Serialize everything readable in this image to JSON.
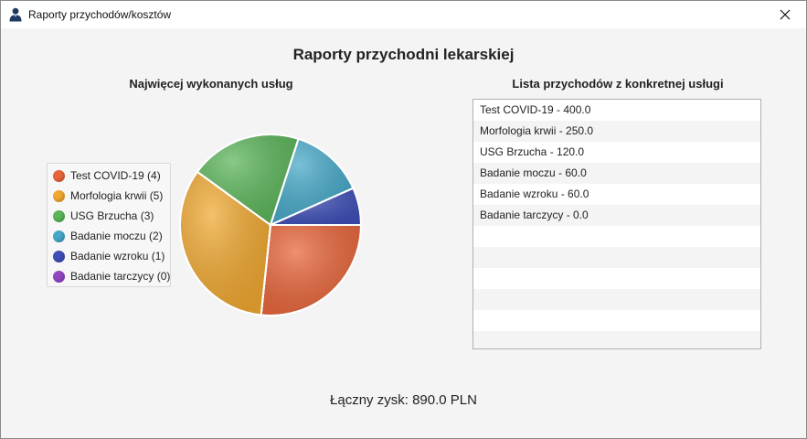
{
  "window": {
    "title": "Raporty przychodów/kosztów"
  },
  "heading": "Raporty przychodni lekarskiej",
  "pie_panel": {
    "title": "Najwięcej wykonanych usług"
  },
  "list_panel": {
    "title": "Lista przychodów z konkretnej usługi"
  },
  "chart_data": {
    "type": "pie",
    "title": "Najwięcej wykonanych usług",
    "legend_position": "left",
    "slices": [
      {
        "label": "Test COVID-19 (4)",
        "value": 4,
        "color": "#e8653a"
      },
      {
        "label": "Morfologia krwii (5)",
        "value": 5,
        "color": "#f0a830"
      },
      {
        "label": "USG Brzucha (3)",
        "value": 3,
        "color": "#5bb55a"
      },
      {
        "label": "Badanie moczu (2)",
        "value": 2,
        "color": "#45a8c8"
      },
      {
        "label": "Badanie wzroku (1)",
        "value": 1,
        "color": "#3f4fb8"
      },
      {
        "label": "Badanie tarczycy (0)",
        "value": 0,
        "color": "#9246c4"
      }
    ]
  },
  "revenue_list": {
    "items": [
      "Test COVID-19 - 400.0",
      "Morfologia krwii - 250.0",
      "USG Brzucha - 120.0",
      "Badanie moczu - 60.0",
      "Badanie wzroku - 60.0",
      "Badanie tarczycy - 0.0"
    ]
  },
  "total": {
    "label": "Łączny zysk:",
    "value": "890.0 PLN"
  },
  "icons": {
    "app": "user-icon",
    "close": "close-icon"
  }
}
